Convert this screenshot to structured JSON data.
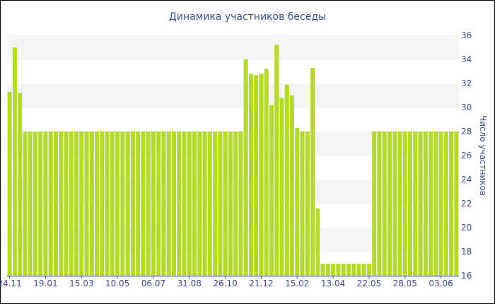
{
  "chart_data": {
    "type": "bar",
    "title": "Динамика участников беседы",
    "xlabel": "",
    "ylabel": "Число участников",
    "ylim": [
      16,
      36
    ],
    "y_ticks": [
      16,
      18,
      20,
      22,
      24,
      26,
      28,
      30,
      32,
      34,
      36
    ],
    "y_axis_side": "right",
    "grid": "alternating horizontal bands",
    "legend": "none",
    "bar_color": "#b5d92b",
    "band_color": "#f5f5f5",
    "text_color": "#3b4f90",
    "x_tick_labels": [
      {
        "label": "24.11",
        "index": 0
      },
      {
        "label": "19.01",
        "index": 7
      },
      {
        "label": "15.03",
        "index": 14
      },
      {
        "label": "10.05",
        "index": 21
      },
      {
        "label": "06.07",
        "index": 28
      },
      {
        "label": "31.08",
        "index": 35
      },
      {
        "label": "26.10",
        "index": 42
      },
      {
        "label": "21.12",
        "index": 49
      },
      {
        "label": "15.02",
        "index": 56
      },
      {
        "label": "13.04",
        "index": 63
      },
      {
        "label": "22.05",
        "index": 70
      },
      {
        "label": "28.05",
        "index": 77
      },
      {
        "label": "03.06",
        "index": 84
      }
    ],
    "values": [
      31.3,
      35,
      31.2,
      28,
      28,
      28,
      28,
      28,
      28,
      28,
      28,
      28,
      28,
      28,
      28,
      28,
      28,
      28,
      28,
      28,
      28,
      28,
      28,
      28,
      28,
      28,
      28,
      28,
      28,
      28,
      28,
      28,
      28,
      28,
      28,
      28,
      28,
      28,
      28,
      28,
      28,
      28,
      28,
      28,
      28,
      28,
      34,
      32.8,
      32.7,
      32.8,
      33.2,
      30.2,
      35.2,
      30.8,
      31.9,
      31,
      28.3,
      28,
      28,
      33.3,
      21.6,
      17,
      17,
      17,
      17,
      17,
      17,
      17,
      17,
      17,
      17,
      28,
      28,
      28,
      28,
      28,
      28,
      28,
      28,
      28,
      28,
      28,
      28,
      28,
      28,
      28,
      28,
      28
    ]
  }
}
